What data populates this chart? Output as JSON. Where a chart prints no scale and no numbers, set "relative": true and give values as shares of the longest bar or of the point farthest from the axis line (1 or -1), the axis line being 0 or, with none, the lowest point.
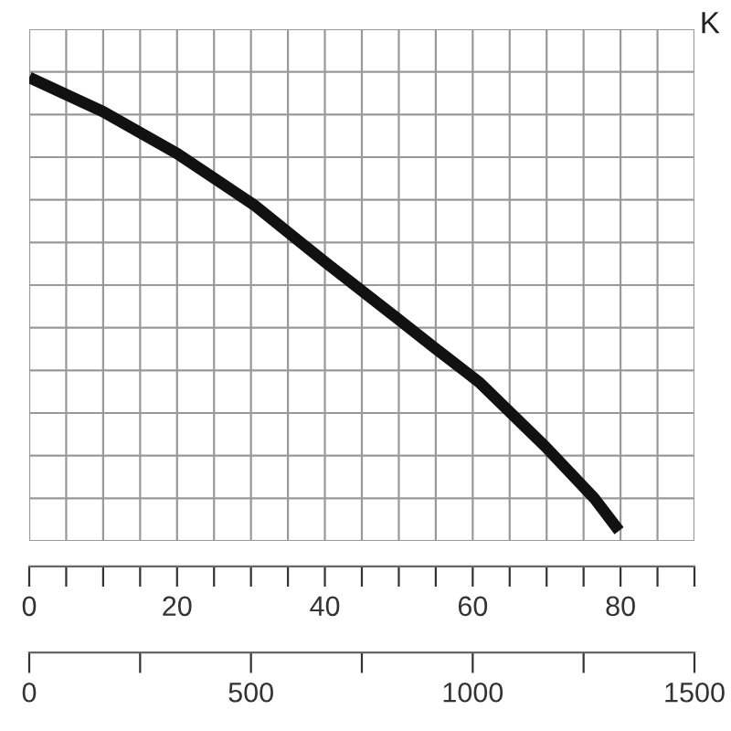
{
  "chart_data": {
    "type": "line",
    "relative": true,
    "x": [
      0,
      10,
      20,
      30.4,
      40,
      49.8,
      54.9,
      60.9,
      69.8,
      76.4,
      79.8
    ],
    "series": [
      {
        "color": "#111111",
        "values": [
          1,
          0.926,
          0.836,
          0.725,
          0.602,
          0.48,
          0.416,
          0.342,
          0.204,
          0.093,
          0.022
        ]
      }
    ],
    "xlim": [
      0,
      90
    ],
    "xticks": [
      0,
      {
        "value": 5,
        "label": null
      },
      {
        "value": 10,
        "label": null
      },
      {
        "value": 15,
        "label": null
      },
      20,
      {
        "value": 25,
        "label": null
      },
      {
        "value": 30,
        "label": null
      },
      {
        "value": 35,
        "label": null
      },
      40,
      {
        "value": 45,
        "label": null
      },
      {
        "value": 50,
        "label": null
      },
      {
        "value": 55,
        "label": null
      },
      60,
      {
        "value": 65,
        "label": null
      },
      {
        "value": 70,
        "label": null
      },
      {
        "value": 75,
        "label": null
      },
      80,
      {
        "value": 85,
        "label": null
      },
      {
        "value": 90,
        "label": null
      }
    ],
    "x2lim": [
      0,
      1500
    ],
    "x2ticks": [
      0,
      {
        "value": 250,
        "label": null
      },
      500,
      {
        "value": 750,
        "label": null
      },
      1000,
      {
        "value": 1250,
        "label": null
      },
      1500
    ],
    "grid": true,
    "marker": "none",
    "line_style": "solid",
    "annotations": [
      "K"
    ]
  }
}
